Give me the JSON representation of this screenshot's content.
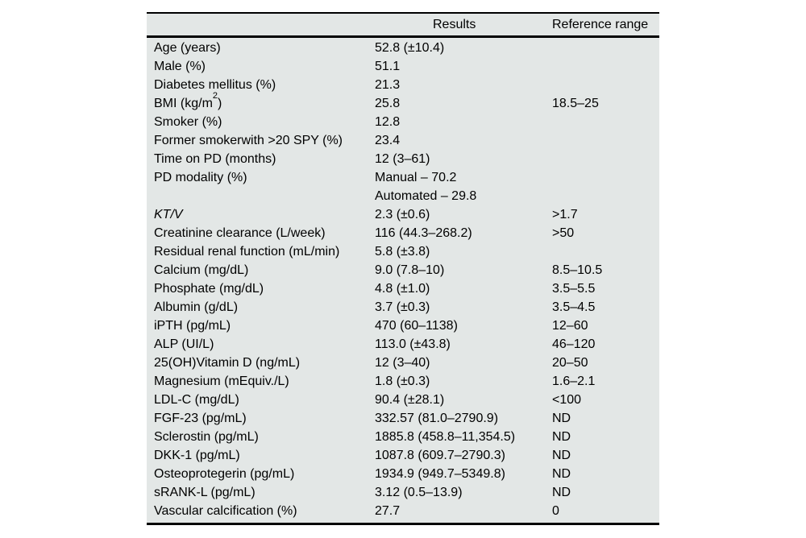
{
  "page": {
    "background": "#ffffff"
  },
  "table": {
    "background": "#e3e7e6",
    "rule_color": "#000000",
    "headers": {
      "label": "",
      "results": "Results",
      "reference": "Reference range"
    },
    "rows": [
      {
        "label": "Age (years)",
        "result": "52.8 (±10.4)",
        "ref": ""
      },
      {
        "label": "Male (%)",
        "result": "51.1",
        "ref": ""
      },
      {
        "label": "Diabetes mellitus (%)",
        "result": "21.3",
        "ref": ""
      },
      {
        "label_pre": "BMI (kg/m",
        "label_sup": "2",
        "label_post": ")",
        "result": "25.8",
        "ref": "18.5–25"
      },
      {
        "label": "Smoker (%)",
        "result": "12.8",
        "ref": ""
      },
      {
        "label": "Former smokerwith >20 SPY (%)",
        "result": "23.4",
        "ref": ""
      },
      {
        "label": "Time on PD (months)",
        "result": "12 (3–61)",
        "ref": ""
      },
      {
        "label": "PD modality (%)",
        "result_lines": [
          "Manual – 70.2",
          "Automated – 29.8"
        ],
        "ref": ""
      },
      {
        "label": "KT/V",
        "result": "2.3 (±0.6)",
        "ref": ">1.7"
      },
      {
        "label": "Creatinine clearance (L/week)",
        "result": "116 (44.3–268.2)",
        "ref": ">50"
      },
      {
        "label": "Residual renal function (mL/min)",
        "result": "5.8 (±3.8)",
        "ref": ""
      },
      {
        "label": "Calcium (mg/dL)",
        "result": "9.0 (7.8–10)",
        "ref": "8.5–10.5"
      },
      {
        "label": "Phosphate (mg/dL)",
        "result": "4.8 (±1.0)",
        "ref": "3.5–5.5"
      },
      {
        "label": "Albumin (g/dL)",
        "result": "3.7 (±0.3)",
        "ref": "3.5–4.5"
      },
      {
        "label": "iPTH (pg/mL)",
        "result": "470 (60–1138)",
        "ref": "12–60"
      },
      {
        "label": "ALP (UI/L)",
        "result": "113.0 (±43.8)",
        "ref": "46–120"
      },
      {
        "label": "25(OH)Vitamin D (ng/mL)",
        "result": "12 (3–40)",
        "ref": "20–50"
      },
      {
        "label": "Magnesium (mEquiv./L)",
        "result": "1.8 (±0.3)",
        "ref": "1.6–2.1"
      },
      {
        "label": "LDL-C (mg/dL)",
        "result": "90.4 (±28.1)",
        "ref": "<100"
      },
      {
        "label": "FGF-23 (pg/mL)",
        "result": "332.57 (81.0–2790.9)",
        "ref": "ND"
      },
      {
        "label": "Sclerostin (pg/mL)",
        "result": "1885.8 (458.8–11,354.5)",
        "ref": "ND"
      },
      {
        "label": "DKK-1 (pg/mL)",
        "result": "1087.8 (609.7–2790.3)",
        "ref": "ND"
      },
      {
        "label": "Osteoprotegerin (pg/mL)",
        "result": "1934.9 (949.7–5349.8)",
        "ref": "ND"
      },
      {
        "label": "sRANK-L (pg/mL)",
        "result": "3.12 (0.5–13.9)",
        "ref": "ND"
      },
      {
        "label": "Vascular calcification (%)",
        "result": "27.7",
        "ref": "0"
      }
    ]
  }
}
